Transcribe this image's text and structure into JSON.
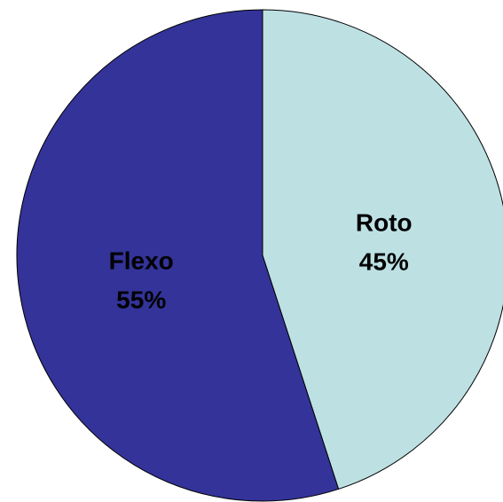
{
  "chart_data": {
    "type": "pie",
    "categories": [
      "Flexo",
      "Roto"
    ],
    "values": [
      55,
      45
    ],
    "value_labels": [
      "55%",
      "45%"
    ],
    "colors": [
      "#333399",
      "#bde0e3"
    ],
    "title": "",
    "legend": "none",
    "start": "top",
    "direction": "clockwise-from-roto"
  }
}
